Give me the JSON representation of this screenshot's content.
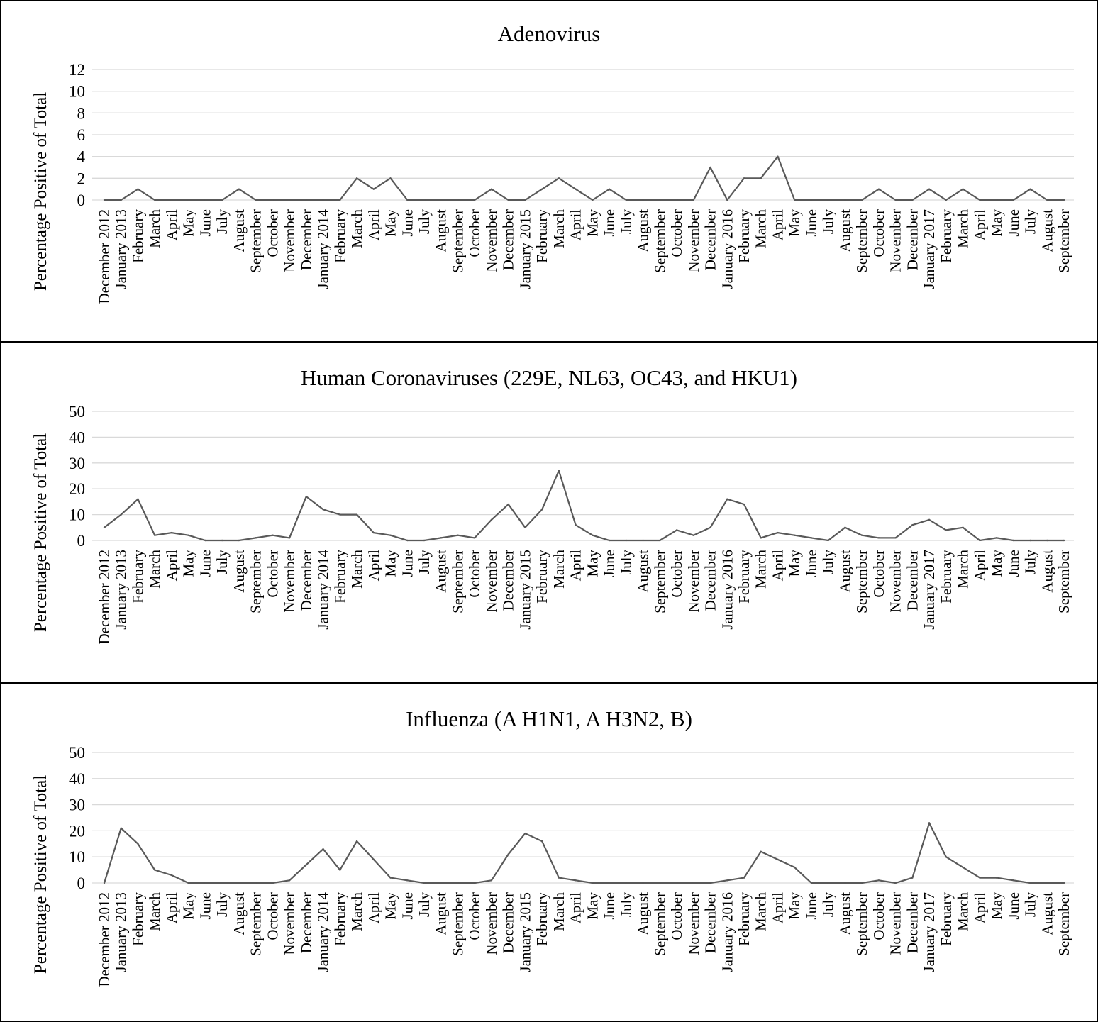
{
  "chart_data": [
    {
      "type": "line",
      "title": "Adenovirus",
      "ylabel": "Percentage Positive of Total",
      "xlabel": "",
      "ylim": [
        0,
        12
      ],
      "yticks": [
        0,
        2,
        4,
        6,
        8,
        10,
        12
      ],
      "grid": true,
      "legend": "none",
      "line_color": "#595959",
      "categories": [
        "December 2012",
        "January 2013",
        "February",
        "March",
        "April",
        "May",
        "June",
        "July",
        "August",
        "September",
        "October",
        "November",
        "December",
        "January 2014",
        "February",
        "March",
        "April",
        "May",
        "June",
        "July",
        "August",
        "September",
        "October",
        "November",
        "December",
        "January 2015",
        "February",
        "March",
        "April",
        "May",
        "June",
        "July",
        "August",
        "September",
        "October",
        "November",
        "December",
        "January 2016",
        "February",
        "March",
        "April",
        "May",
        "June",
        "July",
        "August",
        "September",
        "October",
        "November",
        "December",
        "January 2017",
        "February",
        "March",
        "April",
        "May",
        "June",
        "July",
        "August",
        "September"
      ],
      "values": [
        0,
        0,
        1,
        0,
        0,
        0,
        0,
        0,
        1,
        0,
        0,
        0,
        0,
        0,
        0,
        2,
        1,
        2,
        0,
        0,
        0,
        0,
        0,
        1,
        0,
        0,
        1,
        2,
        1,
        0,
        1,
        0,
        0,
        0,
        0,
        0,
        3,
        0,
        2,
        2,
        4,
        0,
        0,
        0,
        0,
        0,
        1,
        0,
        0,
        1,
        0,
        1,
        0,
        0,
        0,
        1,
        0,
        0
      ]
    },
    {
      "type": "line",
      "title": "Human Coronaviruses (229E, NL63, OC43, and HKU1)",
      "ylabel": "Percentage Positive of Total",
      "xlabel": "",
      "ylim": [
        0,
        50
      ],
      "yticks": [
        0,
        10,
        20,
        30,
        40,
        50
      ],
      "grid": true,
      "legend": "none",
      "line_color": "#595959",
      "categories": [
        "December 2012",
        "January 2013",
        "February",
        "March",
        "April",
        "May",
        "June",
        "July",
        "August",
        "September",
        "October",
        "November",
        "December",
        "January 2014",
        "February",
        "March",
        "April",
        "May",
        "June",
        "July",
        "August",
        "September",
        "October",
        "November",
        "December",
        "January 2015",
        "February",
        "March",
        "April",
        "May",
        "June",
        "July",
        "August",
        "September",
        "October",
        "November",
        "December",
        "January 2016",
        "February",
        "March",
        "April",
        "May",
        "June",
        "July",
        "August",
        "September",
        "October",
        "November",
        "December",
        "January 2017",
        "February",
        "March",
        "April",
        "May",
        "June",
        "July",
        "August",
        "September"
      ],
      "values": [
        5,
        10,
        16,
        2,
        3,
        2,
        0,
        0,
        0,
        1,
        2,
        1,
        17,
        12,
        10,
        10,
        3,
        2,
        0,
        0,
        1,
        2,
        1,
        8,
        14,
        5,
        12,
        27,
        6,
        2,
        0,
        0,
        0,
        0,
        4,
        2,
        5,
        16,
        14,
        1,
        3,
        2,
        1,
        0,
        5,
        2,
        1,
        1,
        6,
        8,
        4,
        5,
        0,
        1,
        0,
        0,
        0,
        0
      ]
    },
    {
      "type": "line",
      "title": "Influenza (A H1N1, A H3N2, B)",
      "ylabel": "Percentage Positive of Total",
      "xlabel": "",
      "ylim": [
        0,
        50
      ],
      "yticks": [
        0,
        10,
        20,
        30,
        40,
        50
      ],
      "grid": true,
      "legend": "none",
      "line_color": "#595959",
      "categories": [
        "December 2012",
        "January 2013",
        "February",
        "March",
        "April",
        "May",
        "June",
        "July",
        "August",
        "September",
        "October",
        "November",
        "December",
        "January 2014",
        "February",
        "March",
        "April",
        "May",
        "June",
        "July",
        "August",
        "September",
        "October",
        "November",
        "December",
        "January 2015",
        "February",
        "March",
        "April",
        "May",
        "June",
        "July",
        "August",
        "September",
        "October",
        "November",
        "December",
        "January 2016",
        "February",
        "March",
        "April",
        "May",
        "June",
        "July",
        "August",
        "September",
        "October",
        "November",
        "December",
        "January 2017",
        "February",
        "March",
        "April",
        "May",
        "June",
        "July",
        "August",
        "September"
      ],
      "values": [
        0,
        21,
        15,
        5,
        3,
        0,
        0,
        0,
        0,
        0,
        0,
        1,
        7,
        13,
        5,
        16,
        9,
        2,
        1,
        0,
        0,
        0,
        0,
        1,
        11,
        19,
        16,
        2,
        1,
        0,
        0,
        0,
        0,
        0,
        0,
        0,
        0,
        1,
        2,
        12,
        9,
        6,
        0,
        0,
        0,
        0,
        1,
        0,
        2,
        23,
        10,
        6,
        2,
        2,
        1,
        0,
        0,
        0
      ]
    }
  ]
}
